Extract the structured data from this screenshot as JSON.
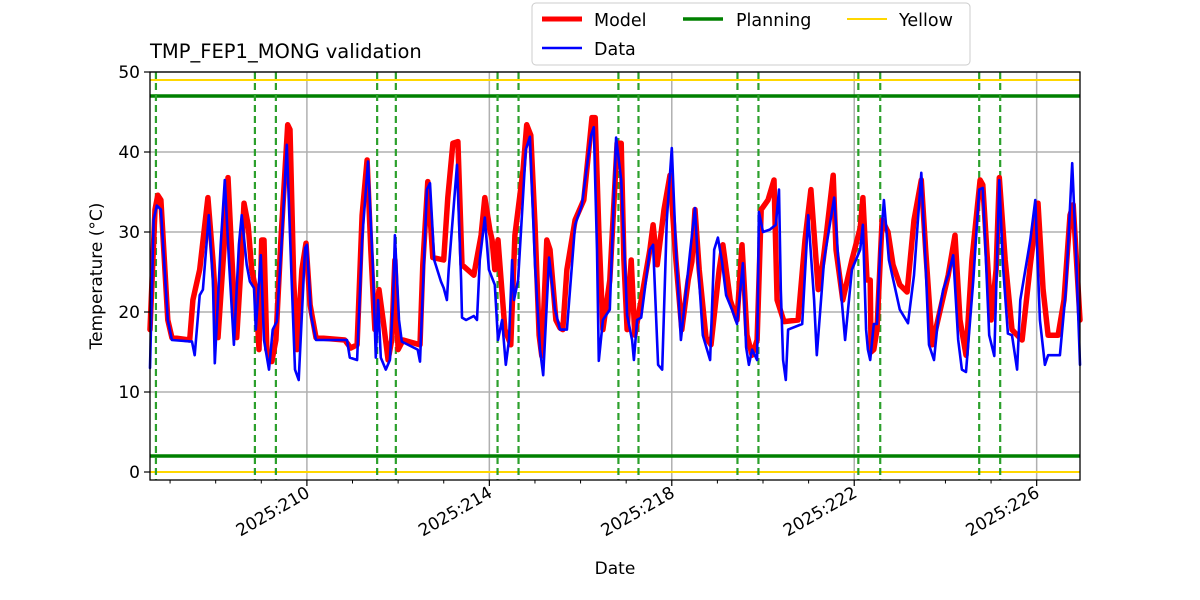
{
  "chart_data": {
    "type": "line",
    "title": "TMP_FEP1_MONG validation",
    "xlabel": "Date",
    "ylabel": "Temperature (°C)",
    "xlim": [
      206.56,
      226.95
    ],
    "ylim": [
      -1,
      50
    ],
    "x_major_ticks": [
      210,
      214,
      218,
      222,
      226
    ],
    "x_tick_labels": [
      "2025:210",
      "2025:214",
      "2025:218",
      "2025:222",
      "2025:226"
    ],
    "x_minor_tick_step": 1,
    "y_ticks": [
      0,
      10,
      20,
      30,
      40,
      50
    ],
    "y_tick_labels": [
      "0",
      "10",
      "20",
      "30",
      "40",
      "50"
    ],
    "grid": true,
    "legend": {
      "placement": "top-center, outside the axes",
      "entries": [
        {
          "name": "Model",
          "color": "#ff0000"
        },
        {
          "name": "Planning",
          "color": "#008000"
        },
        {
          "name": "Yellow",
          "color": "#ffd700"
        },
        {
          "name": "Data",
          "color": "#0000ff"
        }
      ]
    },
    "planning_limits": [
      2,
      47
    ],
    "yellow_limits": [
      0,
      49
    ],
    "dashed_vertical_lines_days": [
      206.69,
      208.86,
      209.32,
      211.54,
      211.95,
      214.18,
      214.64,
      216.83,
      217.27,
      219.44,
      219.9,
      222.09,
      222.57,
      224.74,
      225.2
    ],
    "colors": {
      "model": "#ff0000",
      "data": "#0000ff",
      "planning": "#008000",
      "yellow": "#ffd700",
      "dashed": "#2ca02c",
      "grid": "#b0b0b0"
    },
    "series": [
      {
        "name": "Model",
        "x": [
          206.56,
          206.67,
          206.73,
          206.8,
          206.95,
          207.04,
          207.43,
          207.5,
          207.65,
          207.83,
          207.94,
          208.05,
          208.18,
          208.27,
          208.38,
          208.46,
          208.55,
          208.62,
          208.71,
          208.79,
          208.88,
          208.95,
          209.01,
          209.06,
          209.12,
          209.23,
          209.32,
          209.43,
          209.58,
          209.63,
          209.71,
          209.78,
          209.89,
          209.98,
          210.07,
          210.2,
          210.83,
          210.96,
          211.1,
          211.21,
          211.32,
          211.4,
          211.49,
          211.58,
          211.67,
          211.78,
          211.86,
          211.93,
          212.0,
          212.11,
          212.48,
          212.54,
          212.65,
          212.76,
          213.0,
          213.09,
          213.2,
          213.31,
          213.4,
          213.66,
          213.82,
          213.9,
          214.01,
          214.06,
          214.12,
          214.19,
          214.25,
          214.34,
          214.47,
          214.56,
          214.74,
          214.82,
          214.91,
          215.0,
          215.09,
          215.15,
          215.26,
          215.33,
          215.46,
          215.55,
          215.61,
          215.7,
          215.88,
          216.07,
          216.25,
          216.32,
          216.4,
          216.49,
          216.64,
          216.8,
          216.89,
          216.95,
          217.02,
          217.11,
          217.19,
          217.33,
          217.52,
          217.59,
          217.68,
          217.83,
          217.96,
          218.09,
          218.22,
          218.36,
          218.44,
          218.51,
          218.6,
          218.75,
          218.86,
          219.04,
          219.12,
          219.28,
          219.43,
          219.54,
          219.65,
          219.76,
          219.87,
          219.96,
          220.11,
          220.24,
          220.31,
          220.46,
          220.77,
          220.92,
          221.05,
          221.21,
          221.32,
          221.4,
          221.54,
          221.6,
          221.75,
          221.95,
          222.13,
          222.19,
          222.28,
          222.35,
          222.37,
          222.43,
          222.5,
          222.61,
          222.74,
          222.85,
          223.0,
          223.16,
          223.31,
          223.47,
          223.57,
          223.71,
          224.06,
          224.21,
          224.32,
          224.45,
          224.58,
          224.76,
          224.82,
          225.0,
          225.11,
          225.18,
          225.31,
          225.46,
          225.57,
          225.68,
          225.86,
          226.03,
          226.14,
          226.25,
          226.47,
          226.6,
          226.73,
          226.8,
          226.95
        ],
        "y": [
          17.8,
          32.8,
          34.6,
          34.0,
          19.0,
          16.8,
          16.5,
          21.5,
          25.3,
          34.3,
          26.5,
          16.8,
          27.8,
          36.8,
          24.0,
          16.8,
          25.3,
          33.6,
          30.9,
          25.3,
          22.8,
          15.3,
          29.0,
          29.0,
          15.3,
          13.8,
          16.5,
          29.0,
          43.4,
          42.8,
          24.0,
          15.3,
          25.3,
          28.6,
          20.9,
          16.8,
          16.5,
          15.5,
          15.9,
          32.1,
          39.0,
          27.8,
          17.8,
          22.8,
          19.0,
          14.0,
          16.5,
          26.5,
          15.3,
          16.5,
          15.9,
          25.9,
          36.3,
          26.8,
          26.5,
          34.3,
          41.1,
          41.3,
          25.9,
          24.6,
          29.6,
          34.3,
          30.3,
          29.0,
          25.3,
          29.0,
          24.6,
          17.8,
          15.9,
          29.6,
          37.8,
          43.4,
          42.1,
          30.9,
          17.1,
          14.5,
          29.0,
          27.8,
          19.0,
          18.0,
          17.8,
          25.3,
          31.5,
          34.0,
          44.3,
          44.3,
          30.3,
          17.8,
          24.0,
          41.1,
          41.1,
          26.5,
          17.8,
          26.5,
          17.1,
          21.5,
          27.8,
          30.9,
          25.9,
          32.8,
          37.1,
          26.5,
          17.8,
          24.0,
          26.3,
          32.8,
          25.3,
          16.8,
          15.9,
          25.3,
          28.4,
          21.5,
          19.0,
          28.4,
          17.1,
          14.6,
          16.5,
          32.8,
          34.0,
          36.5,
          21.5,
          18.8,
          19.0,
          29.0,
          35.3,
          22.8,
          26.5,
          30.3,
          37.1,
          27.8,
          21.5,
          26.5,
          30.5,
          34.3,
          24.0,
          24.0,
          15.0,
          15.3,
          17.8,
          31.5,
          30.0,
          25.9,
          23.4,
          22.5,
          31.5,
          36.5,
          27.5,
          15.9,
          24.6,
          29.6,
          19.0,
          14.6,
          26.5,
          36.5,
          35.9,
          19.0,
          25.3,
          36.8,
          26.5,
          17.8,
          17.1,
          16.5,
          25.9,
          33.6,
          22.8,
          17.1,
          17.1,
          21.5,
          32.1,
          33.4,
          19.0
        ]
      },
      {
        "name": "Data",
        "x": [
          206.56,
          206.64,
          206.71,
          206.8,
          206.95,
          207.04,
          207.48,
          207.54,
          207.65,
          207.72,
          207.85,
          207.94,
          207.98,
          208.11,
          208.2,
          208.29,
          208.4,
          208.51,
          208.57,
          208.68,
          208.75,
          208.84,
          208.88,
          208.99,
          209.06,
          209.17,
          209.25,
          209.34,
          209.45,
          209.56,
          209.65,
          209.74,
          209.82,
          209.96,
          210.0,
          210.09,
          210.2,
          210.88,
          210.94,
          211.1,
          211.21,
          211.34,
          211.45,
          211.51,
          211.56,
          211.62,
          211.73,
          211.82,
          211.89,
          211.93,
          212.02,
          212.08,
          212.43,
          212.48,
          212.63,
          212.7,
          212.79,
          212.94,
          213.0,
          213.07,
          213.11,
          213.29,
          213.38,
          213.4,
          213.49,
          213.66,
          213.73,
          213.79,
          213.9,
          213.99,
          214.12,
          214.19,
          214.28,
          214.36,
          214.43,
          214.5,
          214.54,
          214.63,
          214.8,
          214.89,
          215.0,
          215.11,
          215.18,
          215.31,
          215.44,
          215.55,
          215.7,
          215.88,
          216.03,
          216.23,
          216.29,
          216.36,
          216.4,
          216.49,
          216.64,
          216.78,
          216.89,
          216.97,
          217.02,
          217.13,
          217.17,
          217.24,
          217.33,
          217.52,
          217.59,
          217.7,
          217.79,
          217.89,
          218.0,
          218.09,
          218.2,
          218.4,
          218.51,
          218.57,
          218.68,
          218.84,
          218.93,
          219.01,
          219.1,
          219.19,
          219.32,
          219.43,
          219.56,
          219.63,
          219.69,
          219.76,
          219.87,
          219.91,
          220.0,
          220.15,
          220.28,
          220.35,
          220.39,
          220.44,
          220.5,
          220.55,
          220.86,
          220.99,
          221.12,
          221.18,
          221.34,
          221.56,
          221.65,
          221.8,
          221.95,
          222.13,
          222.19,
          222.26,
          222.3,
          222.35,
          222.43,
          222.5,
          222.57,
          222.65,
          222.76,
          223.0,
          223.18,
          223.31,
          223.47,
          223.57,
          223.64,
          223.75,
          223.84,
          223.95,
          224.06,
          224.17,
          224.28,
          224.36,
          224.45,
          224.61,
          224.74,
          224.82,
          224.96,
          225.07,
          225.18,
          225.26,
          225.37,
          225.46,
          225.57,
          225.64,
          225.86,
          225.97,
          226.07,
          226.18,
          226.25,
          226.51,
          226.64,
          226.78,
          226.86,
          226.95
        ],
        "y": [
          13.0,
          31.5,
          33.3,
          32.8,
          19.0,
          16.5,
          16.3,
          14.6,
          22.1,
          22.8,
          32.1,
          24.0,
          13.6,
          28.4,
          36.5,
          26.5,
          15.9,
          28.4,
          32.1,
          25.9,
          23.8,
          23.0,
          17.8,
          27.1,
          16.5,
          12.8,
          17.8,
          18.8,
          29.0,
          40.9,
          26.5,
          12.8,
          11.5,
          28.0,
          28.4,
          19.6,
          16.5,
          16.5,
          14.3,
          14.0,
          29.0,
          38.8,
          25.3,
          14.3,
          21.5,
          14.3,
          12.8,
          14.0,
          21.5,
          29.6,
          19.0,
          16.3,
          15.3,
          13.8,
          35.3,
          36.1,
          26.5,
          23.8,
          23.0,
          21.5,
          25.3,
          38.4,
          24.0,
          19.3,
          19.0,
          19.5,
          19.0,
          26.5,
          31.8,
          25.3,
          23.4,
          16.5,
          19.0,
          13.4,
          16.5,
          26.5,
          21.5,
          24.0,
          40.3,
          41.9,
          25.9,
          15.3,
          12.1,
          26.8,
          20.3,
          17.8,
          17.8,
          30.9,
          33.4,
          42.1,
          43.1,
          27.8,
          13.9,
          19.0,
          20.3,
          41.8,
          36.5,
          26.5,
          19.6,
          16.5,
          14.0,
          19.0,
          19.3,
          27.8,
          28.4,
          13.4,
          12.8,
          31.5,
          40.5,
          27.8,
          16.5,
          27.4,
          33.0,
          26.5,
          17.1,
          14.0,
          27.8,
          29.3,
          26.3,
          22.1,
          20.3,
          18.5,
          26.1,
          15.6,
          13.4,
          15.3,
          14.0,
          32.5,
          30.0,
          30.3,
          30.9,
          35.3,
          22.8,
          14.0,
          11.5,
          17.8,
          18.5,
          32.1,
          21.5,
          14.6,
          26.5,
          34.3,
          26.5,
          16.5,
          25.3,
          27.8,
          30.9,
          17.8,
          15.3,
          14.0,
          18.5,
          18.5,
          27.8,
          34.0,
          26.5,
          20.3,
          18.6,
          24.6,
          37.4,
          25.3,
          15.9,
          14.0,
          19.3,
          22.8,
          24.6,
          27.1,
          16.5,
          12.8,
          12.5,
          24.0,
          35.3,
          35.5,
          17.1,
          14.5,
          36.5,
          25.9,
          17.3,
          17.1,
          12.8,
          21.5,
          29.0,
          34.0,
          19.0,
          13.4,
          14.6,
          14.6,
          22.8,
          38.6,
          27.8,
          13.4
        ]
      }
    ]
  }
}
